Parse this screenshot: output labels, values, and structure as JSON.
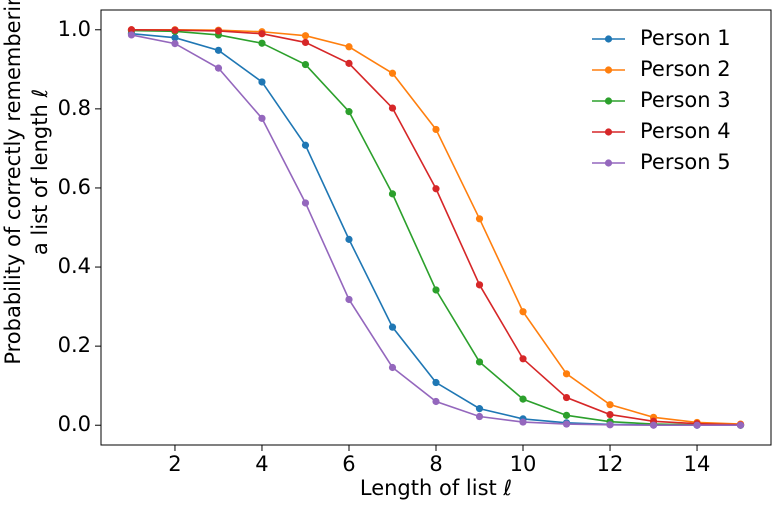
{
  "chart_data": {
    "type": "line",
    "xlabel": "Length of list ℓ",
    "ylabel": [
      "Probability of correctly remembering",
      "a list of length ℓ"
    ],
    "x": [
      1,
      2,
      3,
      4,
      5,
      6,
      7,
      8,
      9,
      10,
      11,
      12,
      13,
      14,
      15
    ],
    "series": [
      {
        "name": "Person 1",
        "color": "#1f77b4",
        "values": [
          0.99,
          0.98,
          0.948,
          0.868,
          0.708,
          0.47,
          0.248,
          0.108,
          0.042,
          0.016,
          0.006,
          0.002,
          0.001,
          0.0,
          0.0
        ]
      },
      {
        "name": "Person 2",
        "color": "#ff7f0e",
        "values": [
          1.0,
          1.0,
          0.999,
          0.995,
          0.985,
          0.957,
          0.89,
          0.748,
          0.522,
          0.287,
          0.13,
          0.052,
          0.02,
          0.007,
          0.003
        ]
      },
      {
        "name": "Person 3",
        "color": "#2ca02c",
        "values": [
          0.998,
          0.996,
          0.987,
          0.966,
          0.912,
          0.793,
          0.585,
          0.342,
          0.16,
          0.066,
          0.025,
          0.009,
          0.003,
          0.001,
          0.0
        ]
      },
      {
        "name": "Person 4",
        "color": "#d62728",
        "values": [
          1.0,
          0.999,
          0.997,
          0.99,
          0.968,
          0.915,
          0.802,
          0.598,
          0.355,
          0.168,
          0.07,
          0.027,
          0.01,
          0.004,
          0.001
        ]
      },
      {
        "name": "Person 5",
        "color": "#9467bd",
        "values": [
          0.987,
          0.965,
          0.903,
          0.776,
          0.562,
          0.318,
          0.146,
          0.06,
          0.022,
          0.008,
          0.003,
          0.001,
          0.0,
          0.0,
          0.0
        ]
      }
    ],
    "xlim": [
      0.3,
      15.7
    ],
    "ylim": [
      -0.05,
      1.05
    ],
    "xticks": [
      2,
      4,
      6,
      8,
      10,
      12,
      14
    ],
    "yticks": [
      {
        "value": 0,
        "label": "0.0"
      },
      0.2,
      0.4,
      0.6,
      0.8,
      {
        "value": 1,
        "label": "1.0"
      }
    ],
    "legend": "upper right",
    "grid": false
  }
}
